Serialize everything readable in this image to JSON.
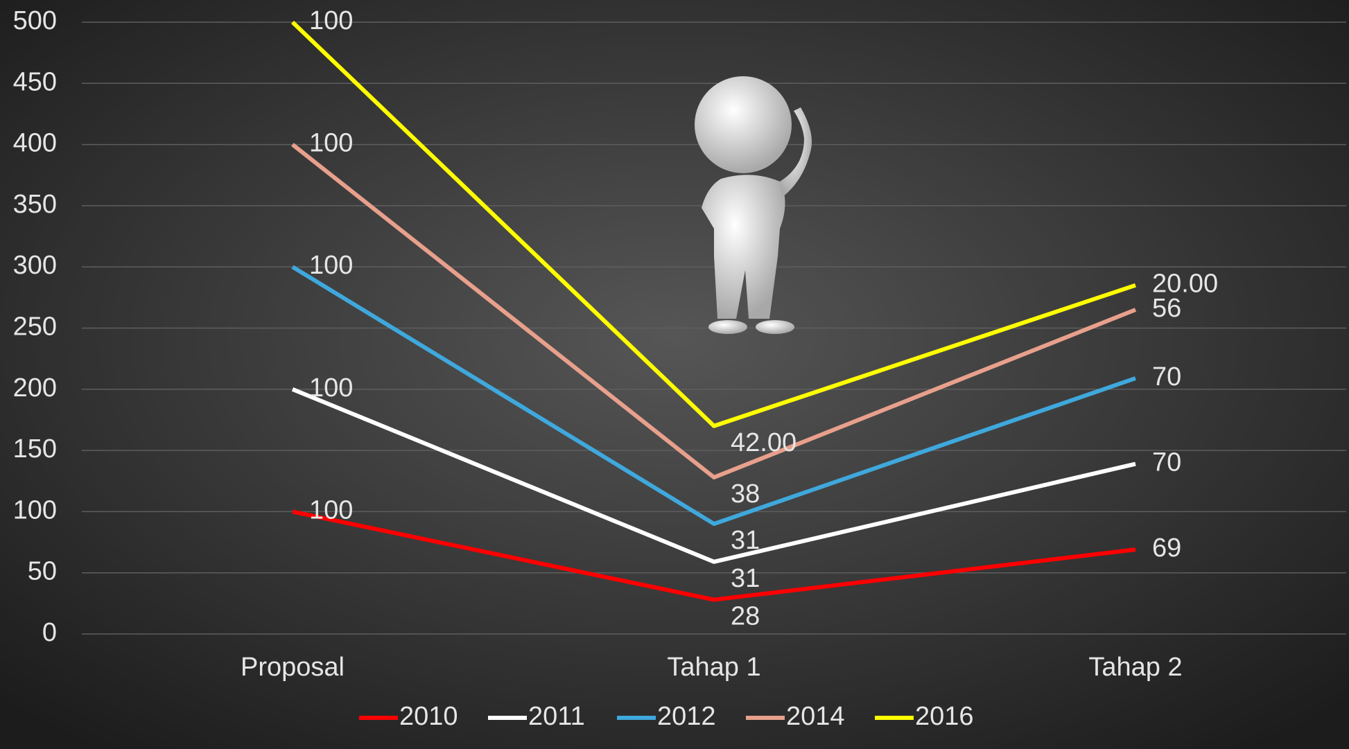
{
  "chart_data": {
    "type": "line",
    "stacked": true,
    "categories": [
      "Proposal",
      "Tahap 1",
      "Tahap 2"
    ],
    "series": [
      {
        "name": "2010",
        "color": "#ff0000",
        "values": [
          100,
          28,
          69
        ]
      },
      {
        "name": "2011",
        "color": "#ffffff",
        "values": [
          100,
          31,
          70
        ]
      },
      {
        "name": "2012",
        "color": "#3fa8dc",
        "values": [
          100,
          31,
          70
        ]
      },
      {
        "name": "2014",
        "color": "#e8a08c",
        "values": [
          100,
          38,
          56
        ]
      },
      {
        "name": "2016",
        "color": "#ffff00",
        "values": [
          100,
          42,
          20
        ],
        "value_labels": [
          "100",
          "42.00",
          "20.00"
        ]
      }
    ],
    "ylim": [
      0,
      500
    ],
    "yticks": [
      0,
      50,
      100,
      150,
      200,
      250,
      300,
      350,
      400,
      450,
      500
    ],
    "grid": true,
    "legend": "bottom"
  }
}
